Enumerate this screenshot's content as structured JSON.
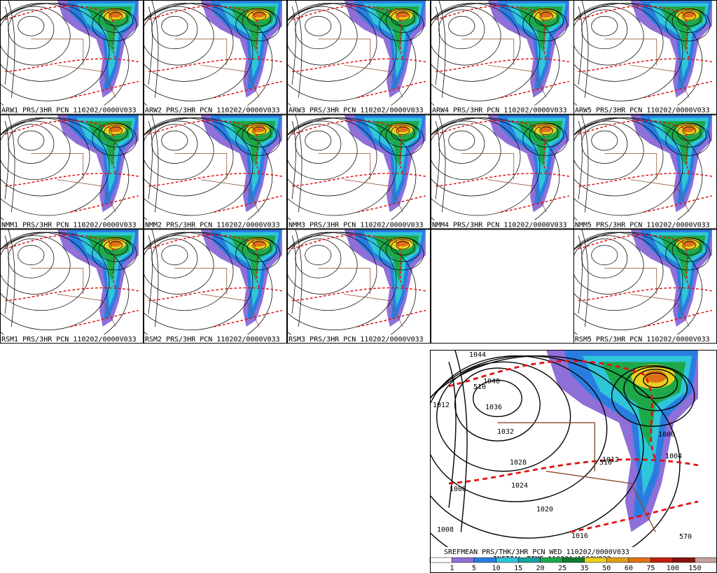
{
  "panels": [
    {
      "caption": "ARW1 PRS/3HR PCN 110202/0000V033"
    },
    {
      "caption": "ARW2 PRS/3HR PCN 110202/0000V033"
    },
    {
      "caption": "ARW3 PRS/3HR PCN 110202/0000V033"
    },
    {
      "caption": "ARW4 PRS/3HR PCN 110202/0000V033"
    },
    {
      "caption": "ARW5 PRS/3HR PCN 110202/0000V033"
    },
    {
      "caption": "NMM1 PRS/3HR PCN 110202/0000V033"
    },
    {
      "caption": "NMM2 PRS/3HR PCN 110202/0000V033"
    },
    {
      "caption": "NMM3 PRS/3HR PCN 110202/0000V033"
    },
    {
      "caption": "NMM4 PRS/3HR PCN 110202/0000V033"
    },
    {
      "caption": "NMM5 PRS/3HR PCN 110202/0000V033"
    },
    {
      "caption": "RSM1 PRS/3HR PCN 110202/0000V033"
    },
    {
      "caption": "RSM2 PRS/3HR PCN 110202/0000V033"
    },
    {
      "caption": "RSM3 PRS/3HR PCN 110202/0000V033"
    },
    null,
    {
      "caption": "RSM5 PRS/3HR PCN 110202/0000V033"
    }
  ],
  "mean_panel": {
    "caption": "SREFMEAN PRS/THK/3HR PCN WED 110202/0000V033",
    "init": "INITIAL TIME 110201/1500V033",
    "contour_labels": [
      "1044",
      "1040",
      "1036",
      "1032",
      "1028",
      "1024",
      "1020",
      "1016",
      "1012",
      "1008",
      "1008",
      "1004",
      "1000",
      "510",
      "510",
      "570",
      "1012"
    ],
    "legend": [
      "1",
      "5",
      "10",
      "15",
      "20",
      "25",
      "35",
      "50",
      "60",
      "75",
      "100",
      "150"
    ]
  }
}
